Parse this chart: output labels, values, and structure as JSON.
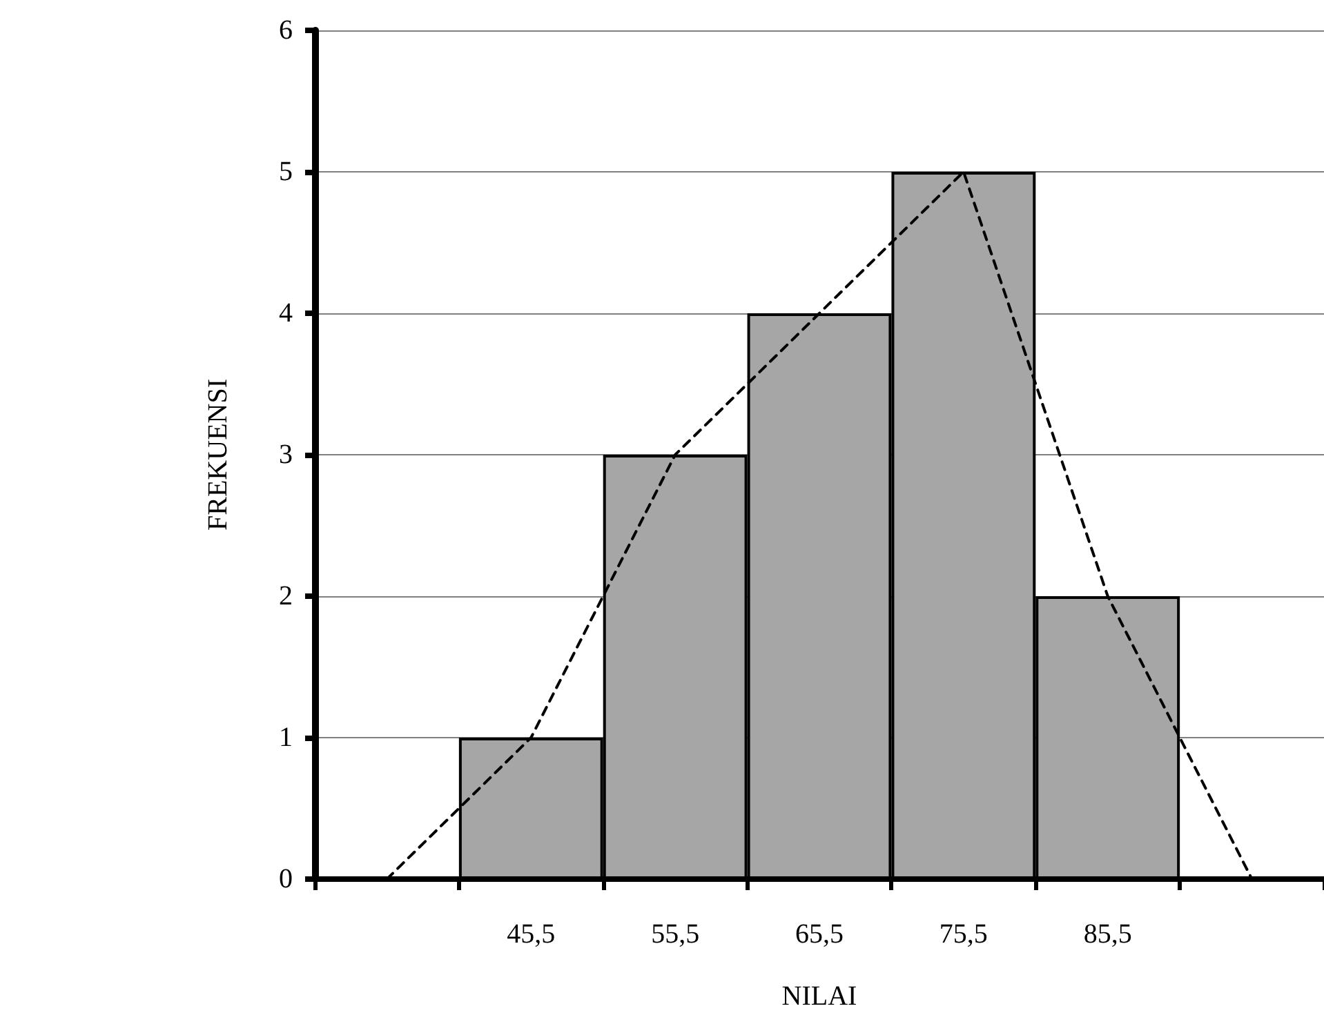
{
  "chart_data": {
    "type": "bar",
    "xlabel": "NILAI",
    "ylabel": "FREKUENSI",
    "categories": [
      null,
      "45,5",
      "55,5",
      "65,5",
      "75,5",
      "85,5",
      null
    ],
    "series": [
      {
        "values": [
          null,
          1,
          3,
          4,
          5,
          2,
          null
        ],
        "color": "#a6a6a6"
      },
      {
        "type": "line",
        "values": [
          0,
          1,
          3,
          4,
          5,
          2,
          0
        ],
        "color": "#000000",
        "line_style": "dashed",
        "marker": "none"
      }
    ],
    "ylim": [
      0,
      6
    ],
    "yticks": [
      0,
      1,
      2,
      3,
      4,
      5,
      6
    ],
    "grid": "y"
  }
}
